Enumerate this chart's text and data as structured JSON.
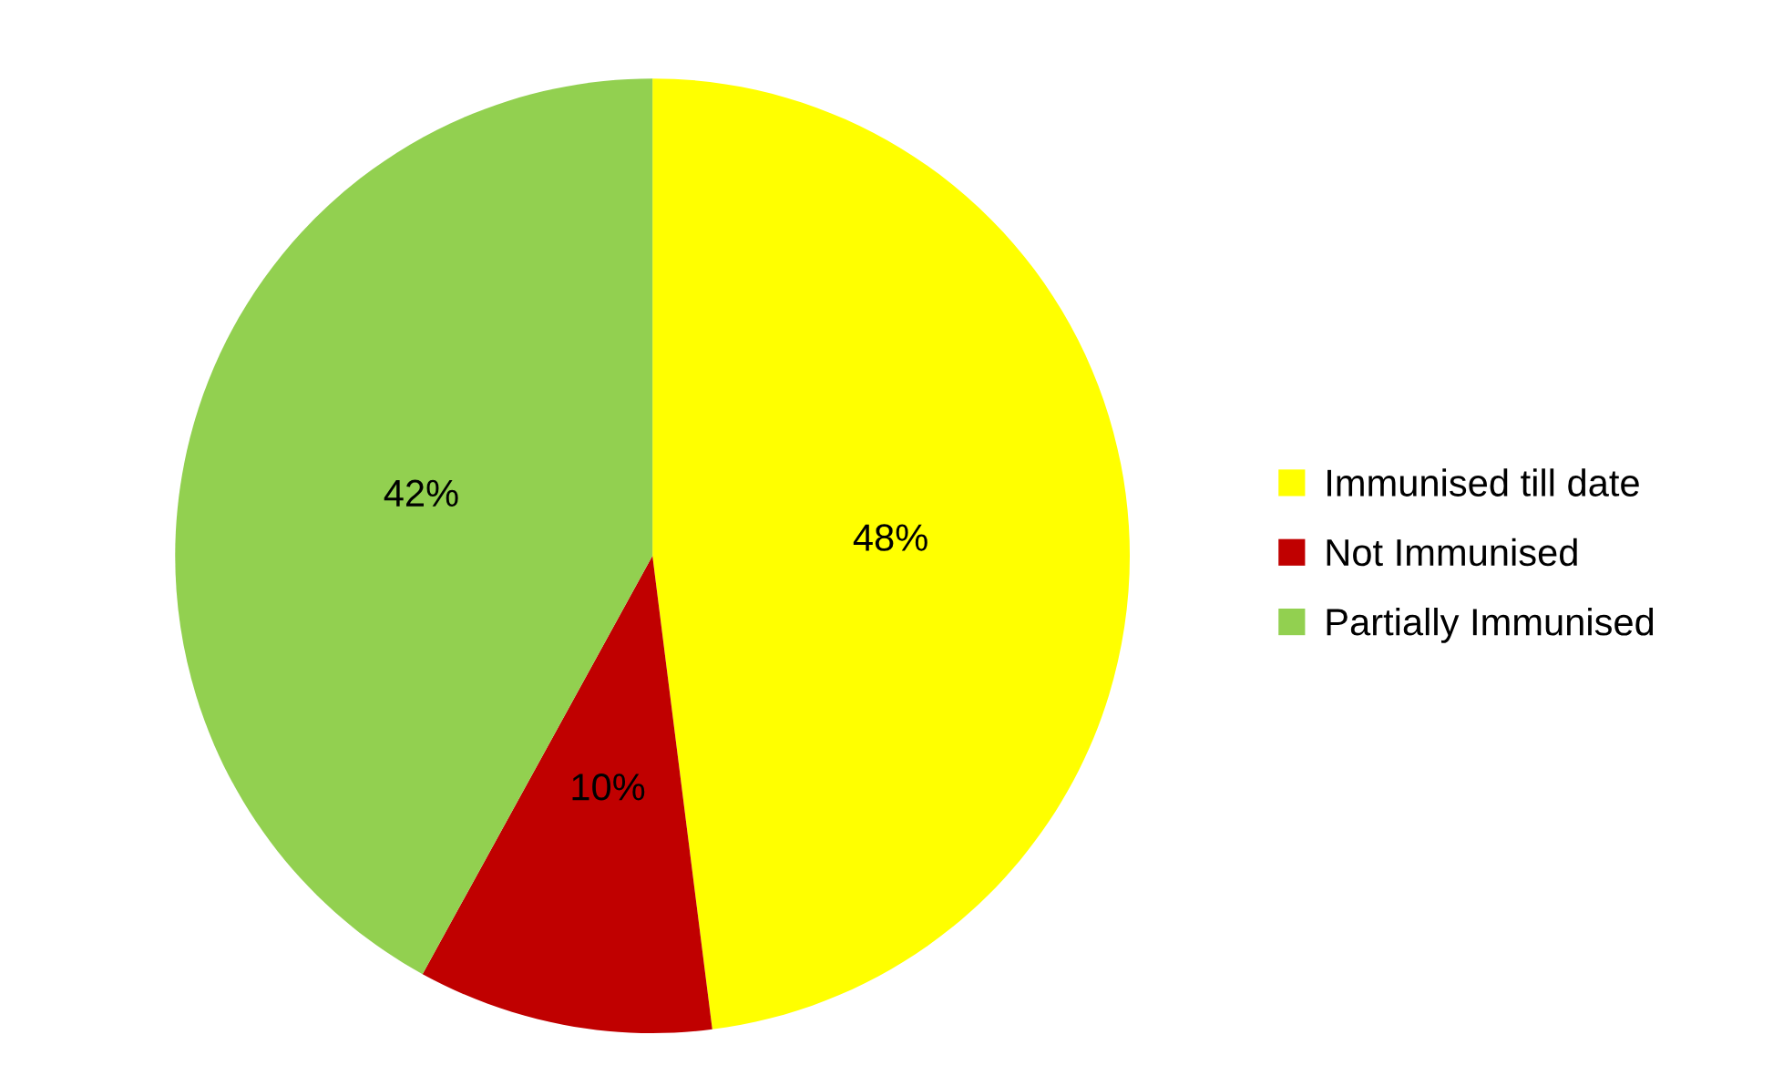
{
  "chart_data": {
    "type": "pie",
    "categories": [
      "Immunised till date",
      "Not Immunised",
      "Partially Immunised"
    ],
    "values": [
      48,
      10,
      42
    ],
    "colors": [
      "#ffff00",
      "#c00000",
      "#92d050"
    ],
    "value_labels": [
      "48%",
      "10%",
      "42%"
    ],
    "legend": "right"
  }
}
